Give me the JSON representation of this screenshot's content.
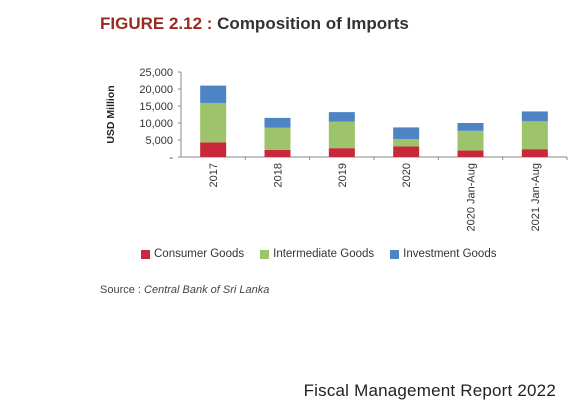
{
  "figure": {
    "number_label": "FIGURE 2.12 :",
    "title": "Composition of Imports"
  },
  "chart_data": {
    "type": "bar",
    "stacked": true,
    "categories": [
      "2017",
      "2018",
      "2019",
      "2020",
      "2020 Jan-Aug",
      "2021 Jan-Aug"
    ],
    "series": [
      {
        "name": "Consumer Goods",
        "color": "#c8283a",
        "values": [
          4300,
          2100,
          2600,
          3100,
          1900,
          2300
        ]
      },
      {
        "name": "Intermediate Goods",
        "color": "#9dc46a",
        "values": [
          11600,
          6500,
          7800,
          2200,
          5800,
          8200
        ]
      },
      {
        "name": "Investment Goods",
        "color": "#4e84c4",
        "values": [
          5100,
          2900,
          2800,
          3400,
          2300,
          2900
        ]
      }
    ],
    "ylabel": "USD Million",
    "ylim": [
      0,
      25000
    ],
    "yticks": [
      0,
      5000,
      10000,
      15000,
      20000,
      25000
    ],
    "ytick_labels": [
      "-",
      "5,000",
      "10,000",
      "15,000",
      "20,000",
      "25,000"
    ],
    "grid": false,
    "legend_position": "bottom"
  },
  "source": {
    "label": "Source :",
    "name": "Central Bank of Sri Lanka"
  },
  "footer": {
    "text": "Fiscal Management Report 2022"
  }
}
